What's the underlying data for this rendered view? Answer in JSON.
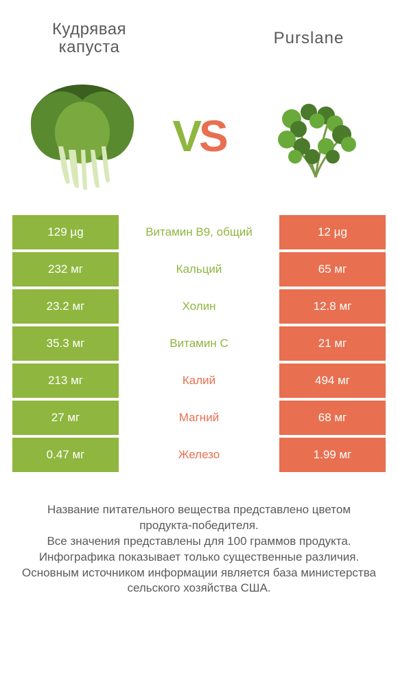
{
  "header": {
    "left_title_line1": "Кудрявая",
    "left_title_line2": "капуста",
    "right_title": "Purslane",
    "vs_v": "V",
    "vs_s": "S"
  },
  "colors": {
    "left": "#8fb63f",
    "right": "#e86f4f",
    "text_gray": "#5a5a5a",
    "bg": "#ffffff"
  },
  "table": {
    "rows": [
      {
        "left": "129 µg",
        "mid": "Витамин B9, общий",
        "right": "12 µg",
        "winner": "left"
      },
      {
        "left": "232 мг",
        "mid": "Кальций",
        "right": "65 мг",
        "winner": "left"
      },
      {
        "left": "23.2 мг",
        "mid": "Холин",
        "right": "12.8 мг",
        "winner": "left"
      },
      {
        "left": "35.3 мг",
        "mid": "Витамин C",
        "right": "21 мг",
        "winner": "left"
      },
      {
        "left": "213 мг",
        "mid": "Калий",
        "right": "494 мг",
        "winner": "right"
      },
      {
        "left": "27 мг",
        "mid": "Магний",
        "right": "68 мг",
        "winner": "right"
      },
      {
        "left": "0.47 мг",
        "mid": "Железо",
        "right": "1.99 мг",
        "winner": "right"
      }
    ]
  },
  "footer": {
    "line1": "Название питательного вещества представлено цветом продукта-победителя.",
    "line2": "Все значения представлены для 100 граммов продукта.",
    "line3": "Инфографика показывает только существенные различия.",
    "line4": "Основным источником информации является база министерства сельского хозяйства США."
  }
}
